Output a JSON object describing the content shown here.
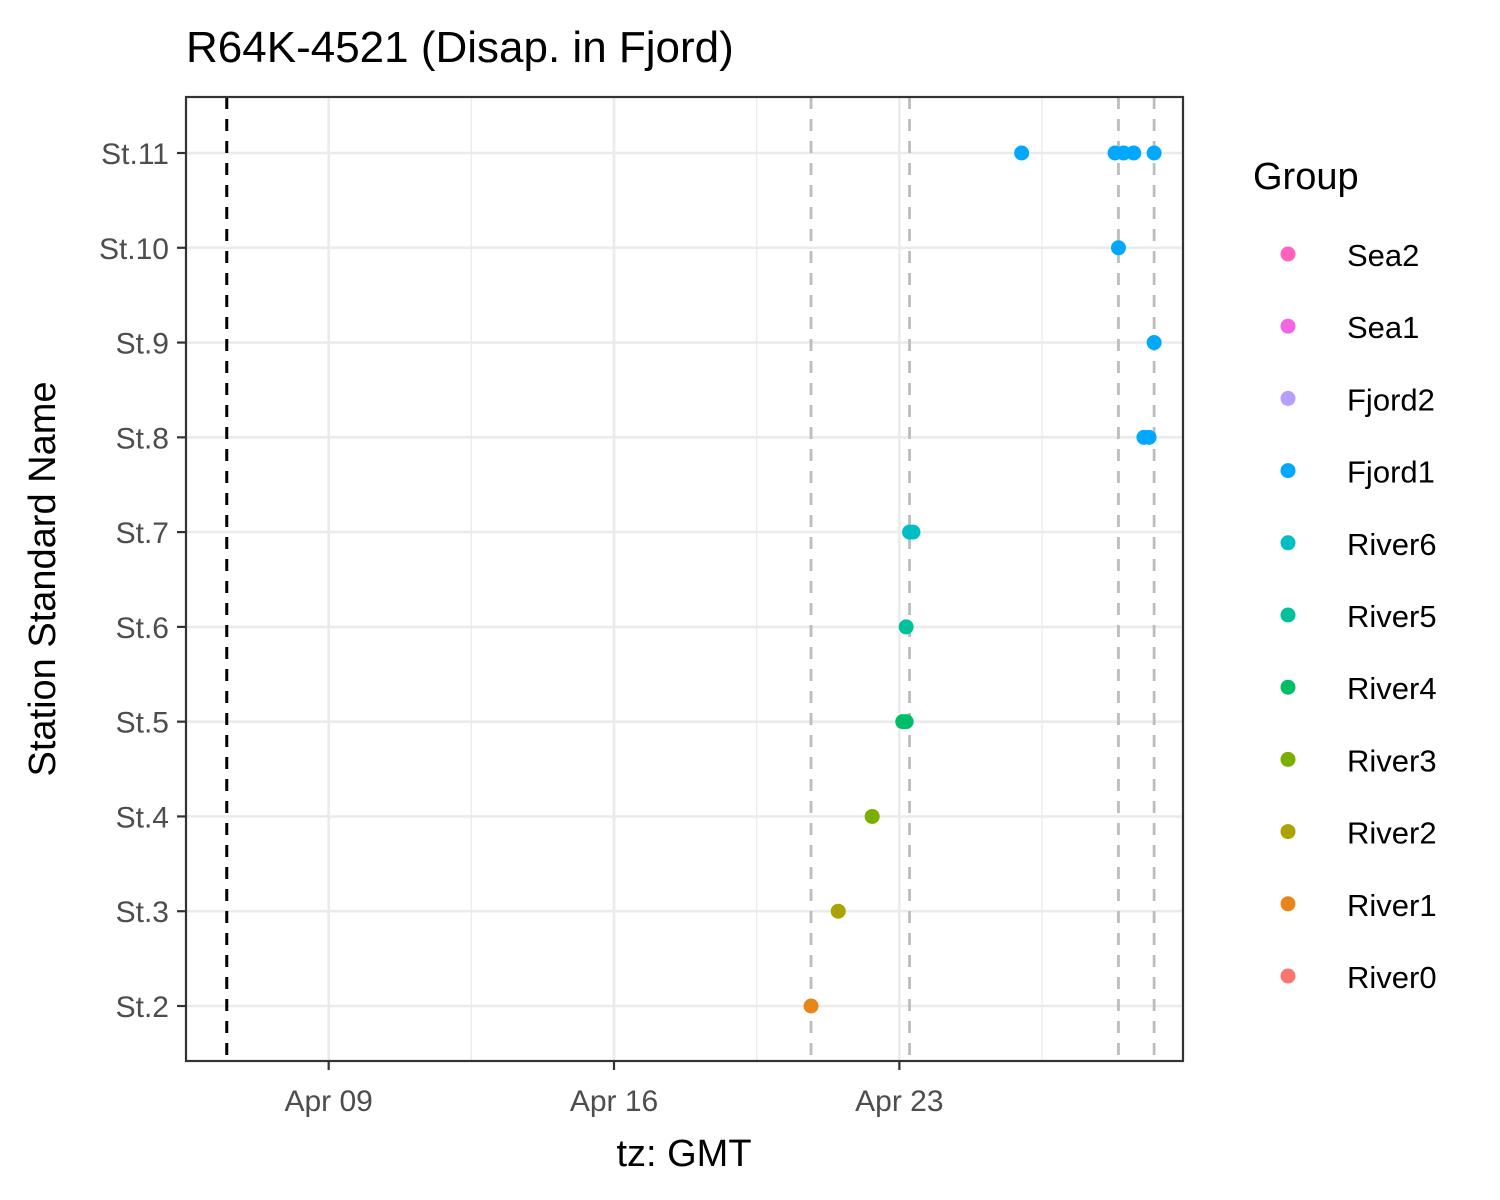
{
  "chart_data": {
    "type": "scatter",
    "title": "R64K-4521 (Disap. in Fjord)",
    "xlabel": "tz: GMT",
    "ylabel": "Station Standard Name",
    "x_axis": {
      "kind": "date",
      "range": [
        "2024-04-05T12:00",
        "2024-04-29T23:00"
      ],
      "ticks": [
        {
          "date": "2024-04-09T00:00",
          "label": "Apr 09"
        },
        {
          "date": "2024-04-16T00:00",
          "label": "Apr 16"
        },
        {
          "date": "2024-04-23T00:00",
          "label": "Apr 23"
        }
      ],
      "minor_gridlines": [
        "2024-04-12T12:00",
        "2024-04-19T12:00",
        "2024-04-26T12:00"
      ]
    },
    "categories": [
      "St.2",
      "St.3",
      "St.4",
      "St.5",
      "St.6",
      "St.7",
      "St.8",
      "St.9",
      "St.10",
      "St.11"
    ],
    "grid": true,
    "legend": {
      "title": "Group",
      "position": "right",
      "entries": [
        {
          "name": "Sea2",
          "color": "#FF62BC"
        },
        {
          "name": "Sea1",
          "color": "#F564E3"
        },
        {
          "name": "Fjord2",
          "color": "#B79FFF"
        },
        {
          "name": "Fjord1",
          "color": "#00A9FF"
        },
        {
          "name": "River6",
          "color": "#00BFC4"
        },
        {
          "name": "River5",
          "color": "#00C19A"
        },
        {
          "name": "River4",
          "color": "#00BE67"
        },
        {
          "name": "River3",
          "color": "#7CAE00"
        },
        {
          "name": "River2",
          "color": "#ABA300"
        },
        {
          "name": "River1",
          "color": "#E7861B"
        },
        {
          "name": "River0",
          "color": "#F8766D"
        }
      ]
    },
    "reference_lines": [
      {
        "date": "2024-04-06T12:00",
        "color": "#000000"
      },
      {
        "date": "2024-04-20T20:00",
        "color": "#bdbdbd"
      },
      {
        "date": "2024-04-23T06:00",
        "color": "#bdbdbd"
      },
      {
        "date": "2024-04-28T09:00",
        "color": "#bdbdbd"
      },
      {
        "date": "2024-04-29T06:00",
        "color": "#bdbdbd"
      }
    ],
    "series": [
      {
        "name": "River1",
        "points": [
          {
            "x": "2024-04-20T20:00",
            "y": "St.2"
          }
        ]
      },
      {
        "name": "River2",
        "points": [
          {
            "x": "2024-04-21T12:00",
            "y": "St.3"
          }
        ]
      },
      {
        "name": "River3",
        "points": [
          {
            "x": "2024-04-22T08:00",
            "y": "St.4"
          }
        ]
      },
      {
        "name": "River4",
        "points": [
          {
            "x": "2024-04-23T02:00",
            "y": "St.5"
          },
          {
            "x": "2024-04-23T04:00",
            "y": "St.5"
          }
        ]
      },
      {
        "name": "River5",
        "points": [
          {
            "x": "2024-04-23T04:00",
            "y": "St.6"
          }
        ]
      },
      {
        "name": "River6",
        "points": [
          {
            "x": "2024-04-23T06:00",
            "y": "St.7"
          },
          {
            "x": "2024-04-23T08:00",
            "y": "St.7"
          }
        ]
      },
      {
        "name": "Fjord1",
        "points": [
          {
            "x": "2024-04-29T00:00",
            "y": "St.8"
          },
          {
            "x": "2024-04-29T03:00",
            "y": "St.8"
          },
          {
            "x": "2024-04-29T06:00",
            "y": "St.9"
          },
          {
            "x": "2024-04-28T09:00",
            "y": "St.10"
          },
          {
            "x": "2024-04-26T00:00",
            "y": "St.11"
          },
          {
            "x": "2024-04-28T07:00",
            "y": "St.11"
          },
          {
            "x": "2024-04-28T12:00",
            "y": "St.11"
          },
          {
            "x": "2024-04-28T18:00",
            "y": "St.11"
          },
          {
            "x": "2024-04-29T06:00",
            "y": "St.11"
          }
        ]
      }
    ]
  }
}
